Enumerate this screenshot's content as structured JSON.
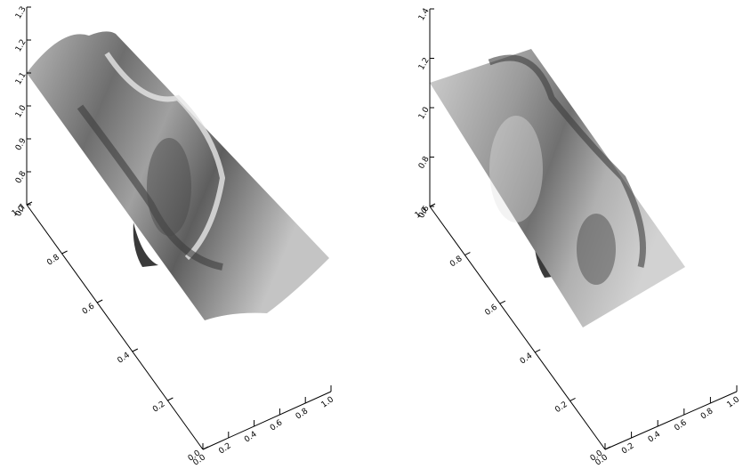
{
  "chart_data": [
    {
      "type": "surface",
      "xlim": [
        0,
        1
      ],
      "xticks": [
        {
          "value": 0,
          "label": "0.0"
        },
        0.2,
        0.4,
        0.6,
        0.8,
        {
          "value": 1,
          "label": "1.0"
        }
      ],
      "ylim": [
        0,
        1
      ],
      "yticks": [
        {
          "value": 0,
          "label": "0.0"
        },
        0.2,
        0.4,
        0.6,
        0.8,
        {
          "value": 1,
          "label": "1.0"
        }
      ],
      "zlim": [
        0.7,
        1.3
      ],
      "zticks": [
        0.7,
        0.8,
        0.9,
        {
          "value": 1,
          "label": "1.0"
        },
        1.1,
        1.2,
        1.3
      ]
    },
    {
      "type": "surface",
      "xlim": [
        0,
        1
      ],
      "xticks": [
        {
          "value": 0,
          "label": "0.0"
        },
        0.2,
        0.4,
        0.6,
        0.8,
        {
          "value": 1,
          "label": "1.0"
        }
      ],
      "ylim": [
        0,
        1
      ],
      "yticks": [
        {
          "value": 0,
          "label": "0.0"
        },
        0.2,
        0.4,
        0.6,
        0.8,
        {
          "value": 1,
          "label": "1.0"
        }
      ],
      "zlim": [
        0.6,
        1.4
      ],
      "zticks": [
        0.6,
        0.8,
        {
          "value": 1,
          "label": "1.0"
        },
        1.2,
        1.4
      ]
    }
  ]
}
